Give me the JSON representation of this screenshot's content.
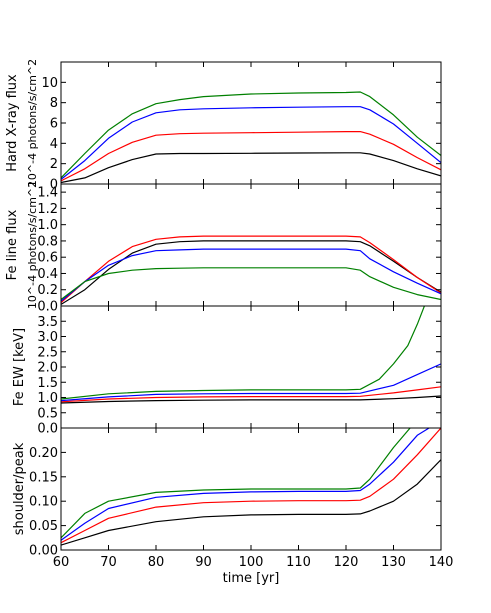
{
  "chart_data": {
    "type": "line",
    "xlabel": "time [yr]",
    "xlim": [
      60,
      140
    ],
    "xticks": [
      60,
      70,
      80,
      90,
      100,
      110,
      120,
      130,
      140
    ],
    "series_colors": {
      "black": "#000000",
      "red": "#ff0000",
      "blue": "#0000ff",
      "green": "#008000"
    },
    "panels": [
      {
        "ylabel": "Hard X-ray flux",
        "ylabel_unit": "10^-4 photons/s/cm^2",
        "ylim": [
          0,
          12
        ],
        "yticks": [
          0,
          2,
          4,
          6,
          8,
          10
        ],
        "series": [
          {
            "color": "black",
            "x": [
              60,
              65,
              70,
              75,
              80,
              85,
              90,
              100,
              110,
              120,
              123,
              125,
              130,
              135,
              140
            ],
            "y": [
              0.15,
              0.6,
              1.6,
              2.4,
              2.95,
              3.0,
              3.0,
              3.02,
              3.05,
              3.07,
              3.07,
              2.95,
              2.3,
              1.5,
              0.8
            ]
          },
          {
            "color": "red",
            "x": [
              60,
              65,
              70,
              75,
              80,
              85,
              90,
              100,
              110,
              120,
              123,
              125,
              130,
              135,
              140
            ],
            "y": [
              0.3,
              1.5,
              3.0,
              4.1,
              4.8,
              4.95,
              5.0,
              5.05,
              5.1,
              5.15,
              5.15,
              4.9,
              3.9,
              2.6,
              1.4
            ]
          },
          {
            "color": "blue",
            "x": [
              60,
              65,
              70,
              75,
              80,
              85,
              90,
              100,
              110,
              120,
              123,
              125,
              130,
              135,
              140
            ],
            "y": [
              0.45,
              2.3,
              4.5,
              6.1,
              7.0,
              7.3,
              7.4,
              7.5,
              7.55,
              7.6,
              7.6,
              7.3,
              5.9,
              4.0,
              2.1
            ]
          },
          {
            "color": "green",
            "x": [
              60,
              65,
              70,
              75,
              80,
              85,
              90,
              100,
              110,
              120,
              123,
              125,
              130,
              135,
              140
            ],
            "y": [
              0.6,
              3.0,
              5.3,
              6.9,
              7.9,
              8.3,
              8.6,
              8.85,
              8.95,
              9.0,
              9.05,
              8.6,
              6.8,
              4.6,
              2.8
            ]
          }
        ]
      },
      {
        "ylabel": "Fe line flux",
        "ylabel_unit": "10^-4 photons/s/cm^2",
        "ylim": [
          0,
          1.5
        ],
        "yticks": [
          0.0,
          0.2,
          0.4,
          0.6,
          0.8,
          1.0,
          1.2,
          1.4
        ],
        "series": [
          {
            "color": "black",
            "x": [
              60,
              65,
              70,
              75,
              80,
              85,
              90,
              100,
              110,
              120,
              123,
              125,
              130,
              135,
              140
            ],
            "y": [
              0.02,
              0.2,
              0.45,
              0.65,
              0.76,
              0.79,
              0.8,
              0.8,
              0.8,
              0.8,
              0.79,
              0.74,
              0.55,
              0.35,
              0.17
            ]
          },
          {
            "color": "red",
            "x": [
              60,
              65,
              70,
              75,
              80,
              85,
              90,
              100,
              110,
              120,
              123,
              125,
              130,
              135,
              140
            ],
            "y": [
              0.04,
              0.3,
              0.55,
              0.73,
              0.82,
              0.85,
              0.86,
              0.86,
              0.86,
              0.86,
              0.85,
              0.78,
              0.57,
              0.35,
              0.16
            ]
          },
          {
            "color": "blue",
            "x": [
              60,
              65,
              70,
              75,
              80,
              85,
              90,
              100,
              110,
              120,
              123,
              125,
              130,
              135,
              140
            ],
            "y": [
              0.06,
              0.3,
              0.5,
              0.62,
              0.68,
              0.69,
              0.7,
              0.7,
              0.7,
              0.7,
              0.68,
              0.58,
              0.42,
              0.28,
              0.15
            ]
          },
          {
            "color": "green",
            "x": [
              60,
              65,
              70,
              75,
              80,
              85,
              90,
              100,
              110,
              120,
              123,
              125,
              130,
              135,
              140
            ],
            "y": [
              0.08,
              0.3,
              0.4,
              0.44,
              0.46,
              0.465,
              0.47,
              0.47,
              0.47,
              0.47,
              0.44,
              0.36,
              0.23,
              0.14,
              0.08
            ]
          }
        ]
      },
      {
        "ylabel": "Fe EW [keV]",
        "ylim": [
          0,
          4.0
        ],
        "yticks": [
          0.0,
          0.5,
          1.0,
          1.5,
          2.0,
          2.5,
          3.0,
          3.5
        ],
        "series": [
          {
            "color": "black",
            "x": [
              60,
              70,
              80,
              90,
              100,
              110,
              120,
              123,
              130,
              135,
              140
            ],
            "y": [
              0.82,
              0.87,
              0.9,
              0.91,
              0.92,
              0.92,
              0.92,
              0.92,
              0.96,
              1.0,
              1.05
            ]
          },
          {
            "color": "red",
            "x": [
              60,
              70,
              80,
              90,
              100,
              110,
              120,
              123,
              130,
              135,
              140
            ],
            "y": [
              0.86,
              0.95,
              1.0,
              1.02,
              1.03,
              1.03,
              1.03,
              1.04,
              1.15,
              1.25,
              1.35
            ]
          },
          {
            "color": "blue",
            "x": [
              60,
              70,
              80,
              90,
              100,
              110,
              120,
              123,
              130,
              135,
              140
            ],
            "y": [
              0.9,
              1.02,
              1.1,
              1.12,
              1.13,
              1.13,
              1.13,
              1.14,
              1.4,
              1.75,
              2.1
            ]
          },
          {
            "color": "green",
            "x": [
              60,
              70,
              80,
              90,
              100,
              110,
              120,
              123,
              127,
              130,
              133,
              135,
              136.5
            ],
            "y": [
              0.95,
              1.12,
              1.2,
              1.23,
              1.25,
              1.25,
              1.25,
              1.27,
              1.6,
              2.1,
              2.7,
              3.4,
              4.0
            ]
          }
        ]
      },
      {
        "ylabel": "shoulder/peak",
        "ylim": [
          0,
          0.25
        ],
        "yticks": [
          0.0,
          0.05,
          0.1,
          0.15,
          0.2
        ],
        "series": [
          {
            "color": "black",
            "x": [
              60,
              65,
              70,
              80,
              90,
              100,
              110,
              120,
              123,
              125,
              130,
              135,
              140
            ],
            "y": [
              0.01,
              0.025,
              0.04,
              0.058,
              0.068,
              0.072,
              0.073,
              0.073,
              0.074,
              0.08,
              0.1,
              0.135,
              0.185
            ]
          },
          {
            "color": "red",
            "x": [
              60,
              65,
              70,
              80,
              90,
              100,
              110,
              120,
              123,
              125,
              130,
              135,
              140
            ],
            "y": [
              0.015,
              0.04,
              0.065,
              0.088,
              0.097,
              0.1,
              0.101,
              0.101,
              0.102,
              0.11,
              0.145,
              0.195,
              0.25
            ]
          },
          {
            "color": "blue",
            "x": [
              60,
              65,
              70,
              80,
              90,
              100,
              110,
              120,
              123,
              125,
              130,
              135,
              137.5
            ],
            "y": [
              0.02,
              0.055,
              0.085,
              0.108,
              0.116,
              0.119,
              0.12,
              0.12,
              0.122,
              0.135,
              0.18,
              0.235,
              0.25
            ]
          },
          {
            "color": "green",
            "x": [
              60,
              65,
              70,
              80,
              90,
              100,
              110,
              120,
              123,
              125,
              130,
              133.5
            ],
            "y": [
              0.025,
              0.075,
              0.1,
              0.118,
              0.123,
              0.125,
              0.125,
              0.125,
              0.127,
              0.145,
              0.21,
              0.25
            ]
          }
        ]
      }
    ]
  }
}
